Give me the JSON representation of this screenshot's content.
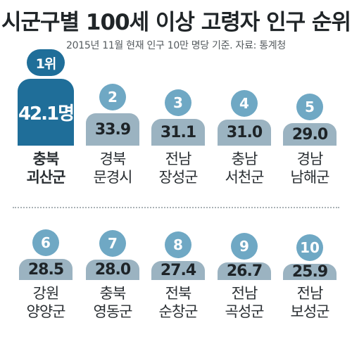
{
  "title": "시군구별 100세 이상 고령자 인구 순위",
  "subtitle": "2015년 11월 현재 인구 10만 명당 기준. 자료: 통계청",
  "colors": {
    "primary": "#1f6e99",
    "badge": "#6fa8c4",
    "body": "#9bb3c1",
    "text": "#2a2f33"
  },
  "chart_data": {
    "type": "bar",
    "title": "시군구별 100세 이상 고령자 인구 순위",
    "subtitle": "2015년 11월 현재 인구 10만 명당 기준. 자료: 통계청",
    "items": [
      {
        "rank": "1위",
        "value": "42.1명",
        "v": 42.1,
        "province": "충북",
        "city": "괴산군"
      },
      {
        "rank": "2",
        "value": "33.9",
        "v": 33.9,
        "province": "경북",
        "city": "문경시"
      },
      {
        "rank": "3",
        "value": "31.1",
        "v": 31.1,
        "province": "전남",
        "city": "장성군"
      },
      {
        "rank": "4",
        "value": "31.0",
        "v": 31.0,
        "province": "충남",
        "city": "서천군"
      },
      {
        "rank": "5",
        "value": "29.0",
        "v": 29.0,
        "province": "경남",
        "city": "남해군"
      },
      {
        "rank": "6",
        "value": "28.5",
        "v": 28.5,
        "province": "강원",
        "city": "양양군"
      },
      {
        "rank": "7",
        "value": "28.0",
        "v": 28.0,
        "province": "충북",
        "city": "영동군"
      },
      {
        "rank": "8",
        "value": "27.4",
        "v": 27.4,
        "province": "전북",
        "city": "순창군"
      },
      {
        "rank": "9",
        "value": "26.7",
        "v": 26.7,
        "province": "전남",
        "city": "곡성군"
      },
      {
        "rank": "10",
        "value": "25.9",
        "v": 25.9,
        "province": "전남",
        "city": "보성군"
      }
    ]
  }
}
